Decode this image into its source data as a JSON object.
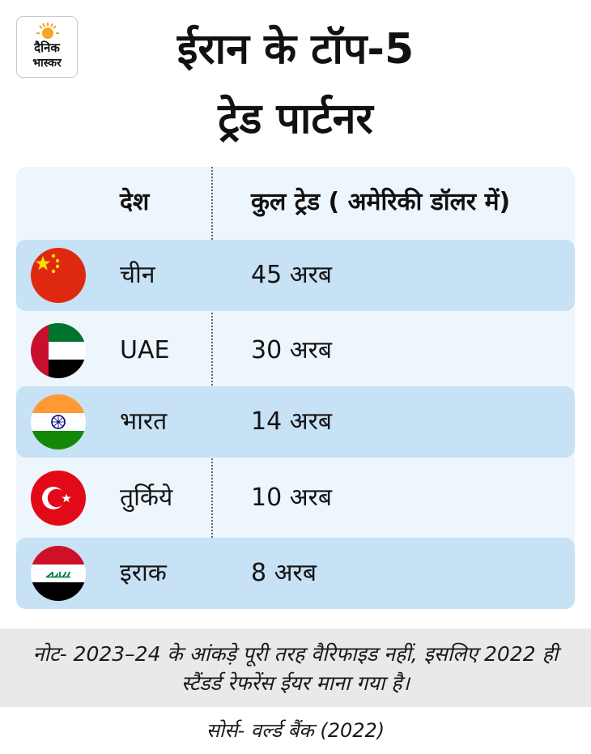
{
  "brand": {
    "line1": "दैनिक",
    "line2": "भास्कर",
    "sun_color": "#f5a623"
  },
  "title": {
    "line1": "ईरान के टॉप-5",
    "line2": "ट्रेड पार्टनर"
  },
  "table": {
    "headers": {
      "country": "देश",
      "trade": "कुल ट्रेड ( अमेरिकी डॉलर में)"
    },
    "rows": [
      {
        "country": "चीन",
        "value": "45 अरब",
        "flag_icon": "china-flag-icon"
      },
      {
        "country": "UAE",
        "value": "30 अरब",
        "flag_icon": "uae-flag-icon"
      },
      {
        "country": "भारत",
        "value": "14 अरब",
        "flag_icon": "india-flag-icon"
      },
      {
        "country": "तुर्किये",
        "value": "10 अरब",
        "flag_icon": "turkey-flag-icon"
      },
      {
        "country": "इराक",
        "value": "8 अरब",
        "flag_icon": "iraq-flag-icon"
      }
    ]
  },
  "note": {
    "line1": "नोट- 2023–24 के आंकड़े पूरी तरह वैरिफाइड नहीं, इसलिए 2022 ही",
    "line2": "स्टैंडर्ड रेफरेंस ईयर माना गया है।"
  },
  "source": "सोर्स- वर्ल्ड बैंक (2022)",
  "colors": {
    "row_highlight": "#c7e1f5",
    "table_bg": "#eef6fd",
    "note_bg": "#e9e9e9"
  }
}
